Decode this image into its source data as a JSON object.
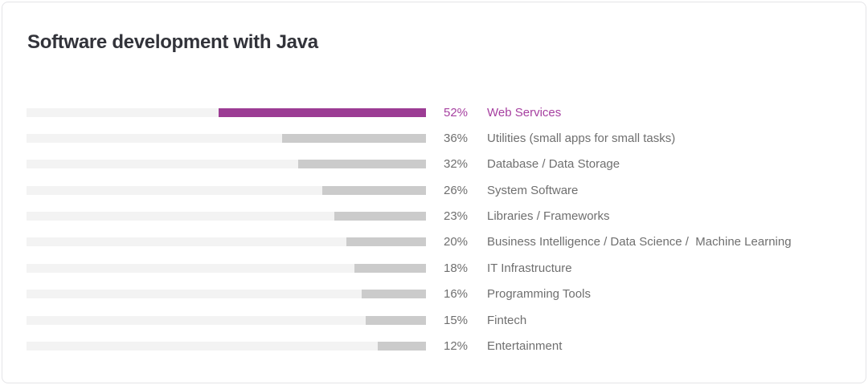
{
  "title": "Software development with Java",
  "chart_data": {
    "type": "bar",
    "orientation": "horizontal",
    "bar_alignment": "right",
    "title": "Software development with Java",
    "xlabel": "",
    "ylabel": "",
    "xlim": [
      0,
      100
    ],
    "unit": "%",
    "grid": false,
    "legend": null,
    "categories": [
      "Web Services",
      "Utilities (small apps for small tasks)",
      "Database / Data Storage",
      "System Software",
      "Libraries / Frameworks",
      "Business Intelligence / Data Science /  Machine Learning",
      "IT Infrastructure",
      "Programming Tools",
      "Fintech",
      "Entertainment"
    ],
    "values": [
      52,
      36,
      32,
      26,
      23,
      20,
      18,
      16,
      15,
      12
    ],
    "value_labels": [
      "52%",
      "36%",
      "32%",
      "26%",
      "23%",
      "20%",
      "18%",
      "16%",
      "15%",
      "12%"
    ],
    "highlight_index": 0,
    "colors": {
      "highlight_bar": "#9C3C94",
      "highlight_text": "#A640A0",
      "bar_fill": "#CBCBCB",
      "bar_track": "#F3F3F3",
      "label_text": "#6F6F6F",
      "title_text": "#32333A",
      "card_border": "#E4E4E7",
      "card_background": "#FFFFFF"
    }
  }
}
